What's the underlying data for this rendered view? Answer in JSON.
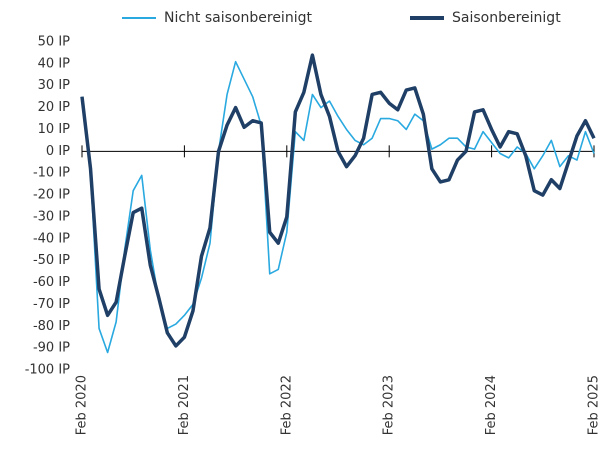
{
  "chart_data": {
    "type": "line",
    "categories": [
      "Feb 2020",
      null,
      null,
      null,
      null,
      null,
      null,
      null,
      null,
      null,
      null,
      null,
      "Feb 2021",
      null,
      null,
      null,
      null,
      null,
      null,
      null,
      null,
      null,
      null,
      null,
      "Feb 2022",
      null,
      null,
      null,
      null,
      null,
      null,
      null,
      null,
      null,
      null,
      null,
      "Feb 2023",
      null,
      null,
      null,
      null,
      null,
      null,
      null,
      null,
      null,
      null,
      null,
      "Feb 2024",
      null,
      null,
      null,
      null,
      null,
      null,
      null,
      null,
      null,
      null,
      null,
      "Feb 2025"
    ],
    "series": [
      {
        "name": "Nicht saisonbereinigt",
        "color": "#29a9e0",
        "values": [
          25,
          -10,
          -81,
          -92,
          -78,
          -45,
          -18,
          -11,
          -45,
          -68,
          -81,
          -79,
          -75,
          -70,
          -58,
          -42,
          0,
          26,
          41,
          33,
          25,
          12,
          -56,
          -54,
          -37,
          9,
          5,
          26,
          20,
          23,
          16,
          10,
          5,
          3,
          6,
          15,
          15,
          14,
          10,
          17,
          14,
          1,
          3,
          6,
          6,
          2,
          1,
          9,
          4,
          -1,
          -3,
          2,
          -1,
          -8,
          -2,
          5,
          -7,
          -2,
          -4,
          9,
          -1
        ]
      },
      {
        "name": "Saisonbereinigt",
        "color": "#1f3f66",
        "values": [
          25,
          -8,
          -63,
          -75,
          -69,
          -48,
          -28,
          -26,
          -52,
          -67,
          -83,
          -89,
          -85,
          -73,
          -48,
          -35,
          0,
          12,
          20,
          11,
          14,
          13,
          -37,
          -42,
          -30,
          18,
          27,
          44,
          26,
          16,
          0,
          -7,
          -2,
          6,
          26,
          27,
          22,
          19,
          28,
          29,
          17,
          -8,
          -14,
          -13,
          -4,
          0,
          18,
          19,
          10,
          2,
          9,
          8,
          -2,
          -18,
          -20,
          -13,
          -17,
          -5,
          7,
          14,
          6
        ]
      }
    ],
    "ylim": [
      -100,
      50
    ],
    "yticks": [
      {
        "value": 50,
        "label": "50 IP"
      },
      {
        "value": 40,
        "label": "40 IP"
      },
      {
        "value": 30,
        "label": "30 IP"
      },
      {
        "value": 20,
        "label": "20 IP"
      },
      {
        "value": 10,
        "label": "10 IP"
      },
      {
        "value": 0,
        "label": "0 IP"
      },
      {
        "value": -10,
        "label": "-10 IP"
      },
      {
        "value": -20,
        "label": "-20 IP"
      },
      {
        "value": -30,
        "label": "-30 IP"
      },
      {
        "value": -40,
        "label": "-40 IP"
      },
      {
        "value": -50,
        "label": "-50 IP"
      },
      {
        "value": -60,
        "label": "-60 IP"
      },
      {
        "value": -70,
        "label": "-70 IP"
      },
      {
        "value": -80,
        "label": "-80 IP"
      },
      {
        "value": -90,
        "label": "-90 IP"
      },
      {
        "value": -100,
        "label": "-100 IP"
      }
    ],
    "legend": "top"
  }
}
